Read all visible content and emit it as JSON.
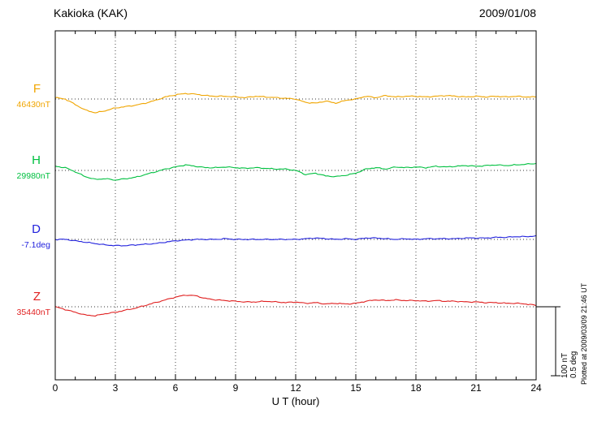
{
  "header": {
    "title": "Kakioka (KAK)",
    "date": "2009/01/08"
  },
  "axis": {
    "xlabel": "U T (hour)",
    "x_ticks": [
      0,
      3,
      6,
      9,
      12,
      15,
      18,
      21,
      24
    ],
    "minor_tick_every_hours": 1
  },
  "annotations": {
    "scale_nt": "100 nT",
    "scale_deg": "0.5 deg",
    "plotted_at": "Plotted at 2009/03/09 21:46 UT"
  },
  "chart_data": {
    "type": "line",
    "title": "Kakioka (KAK) magnetogram 2009/01/08",
    "xlabel": "U T (hour)",
    "xlim": [
      0,
      24
    ],
    "x_ticks": [
      0,
      3,
      6,
      9,
      12,
      15,
      18,
      21,
      24
    ],
    "grid": "dotted vertical at 3h intervals, dotted horizontal baseline per component",
    "scale_reference": {
      "nT_per_bar": 100,
      "deg_per_bar": 0.5
    },
    "x_hours_step": 0.5,
    "series": [
      {
        "name": "F",
        "color": "#f0a500",
        "baseline_label": "46430nT",
        "unit": "nT",
        "values": [
          2,
          0,
          -8,
          -16,
          -20,
          -17,
          -13,
          -11,
          -9,
          -6,
          -2,
          3,
          6,
          8,
          7,
          5,
          4,
          4,
          3,
          2,
          4,
          3,
          2,
          1,
          0,
          -5,
          -6,
          -3,
          -6,
          -2,
          0,
          4,
          2,
          5,
          3,
          4,
          4,
          3,
          4,
          5,
          4,
          3,
          4,
          3,
          4,
          3,
          4,
          3,
          3
        ]
      },
      {
        "name": "H",
        "color": "#00c040",
        "baseline_label": "29980nT",
        "unit": "nT",
        "values": [
          6,
          4,
          -2,
          -9,
          -13,
          -12,
          -14,
          -12,
          -10,
          -6,
          -2,
          2,
          5,
          8,
          6,
          4,
          4,
          5,
          4,
          3,
          4,
          3,
          2,
          2,
          0,
          -6,
          -4,
          -8,
          -9,
          -7,
          -4,
          2,
          4,
          2,
          5,
          4,
          5,
          4,
          6,
          5,
          6,
          7,
          6,
          7,
          8,
          7,
          8,
          9,
          10
        ]
      },
      {
        "name": "D",
        "color": "#2222dd",
        "baseline_label": "-7.1deg",
        "unit": "deg",
        "values": [
          0,
          0,
          -0.01,
          -0.02,
          -0.03,
          -0.04,
          -0.045,
          -0.045,
          -0.04,
          -0.035,
          -0.03,
          -0.02,
          -0.01,
          -0.005,
          0,
          0,
          0,
          0.005,
          0,
          0,
          0,
          0,
          0,
          0,
          0,
          0.005,
          0.01,
          0.005,
          0,
          0.005,
          0,
          0.01,
          0.01,
          0.005,
          0,
          0.005,
          0,
          0.005,
          0.005,
          0.005,
          0.005,
          0.01,
          0.01,
          0.01,
          0.015,
          0.015,
          0.02,
          0.02,
          0.025
        ]
      },
      {
        "name": "Z",
        "color": "#e02020",
        "baseline_label": "35440nT",
        "unit": "nT",
        "values": [
          0,
          -4,
          -8,
          -12,
          -13,
          -10,
          -8,
          -5,
          -2,
          2,
          6,
          10,
          14,
          17,
          16,
          12,
          10,
          9,
          8,
          7,
          7,
          8,
          7,
          6,
          7,
          5,
          6,
          4,
          5,
          4,
          5,
          8,
          10,
          9,
          10,
          9,
          9,
          8,
          9,
          8,
          8,
          7,
          7,
          6,
          6,
          5,
          5,
          4,
          2
        ]
      }
    ]
  }
}
